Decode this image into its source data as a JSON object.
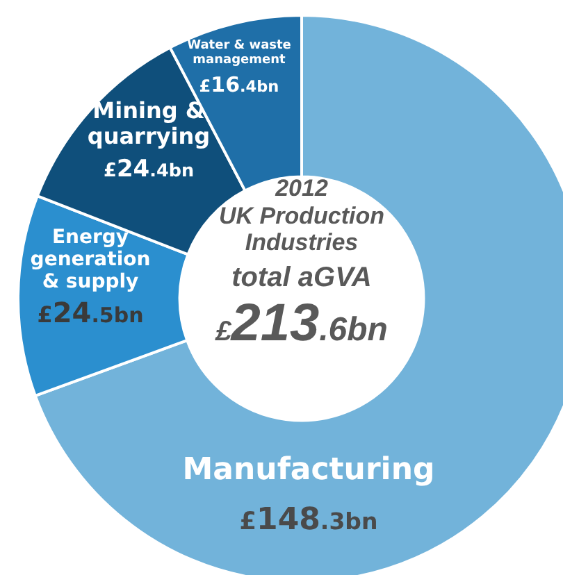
{
  "chart_data": {
    "type": "donut",
    "title": "2012",
    "subtitle": "UK Production Industries",
    "categories": [
      "Manufacturing",
      "Energy generation & supply",
      "Mining & quarrying",
      "Water & waste management"
    ],
    "values": [
      148.3,
      24.5,
      24.4,
      16.4
    ],
    "colors": [
      "#72b3da",
      "#2b8fcf",
      "#0f4f7b",
      "#1f6fa8"
    ],
    "value_labels": [
      "£148.3bn",
      "£24.5bn",
      "£24.4bn",
      "£16.4bn"
    ],
    "annotations": [
      "total aGVA",
      "£213.6bn"
    ],
    "legend": false
  }
}
